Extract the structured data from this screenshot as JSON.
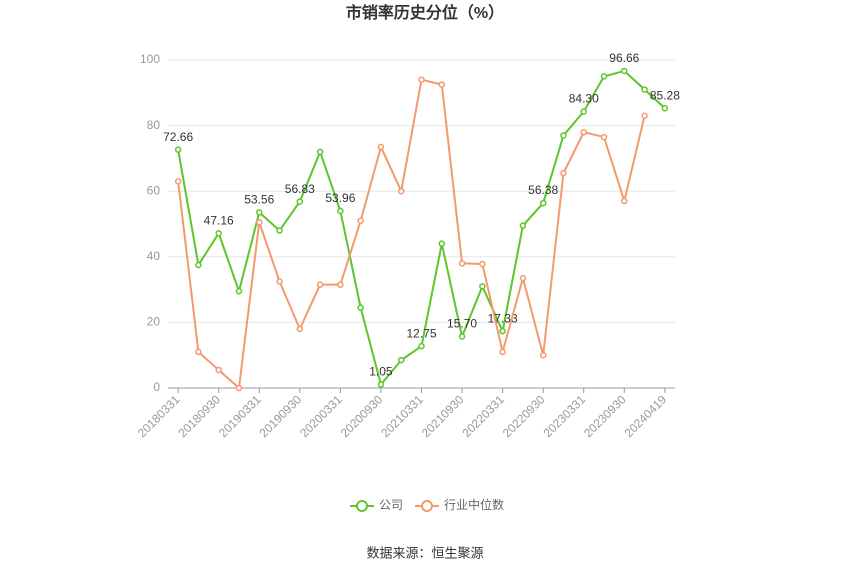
{
  "chart_data": {
    "type": "line",
    "title": "市销率历史分位（%）",
    "source": "数据来源：恒生聚源",
    "categories": [
      "20180331",
      null,
      "20180930",
      null,
      "20190331",
      null,
      "20190930",
      null,
      "20200331",
      null,
      "20200930",
      null,
      "20210331",
      null,
      "20210930",
      null,
      "20220331",
      null,
      "20220930",
      null,
      "20230331",
      null,
      "20230930",
      null,
      "20240419"
    ],
    "series": [
      {
        "name": "公司",
        "color": "#5ec52b",
        "values": [
          72.66,
          37.5,
          47.16,
          29.5,
          53.56,
          48,
          56.83,
          72,
          53.96,
          24.5,
          1.05,
          8.5,
          12.75,
          44,
          15.7,
          31,
          17.33,
          49.5,
          56.38,
          77,
          84.3,
          95,
          96.66,
          91,
          85.28
        ],
        "value_labels": [
          "72.66",
          null,
          "47.16",
          null,
          "53.56",
          null,
          "56.83",
          null,
          "53.96",
          null,
          "1.05",
          null,
          "12.75",
          null,
          "15.70",
          null,
          "17.33",
          null,
          "56.38",
          null,
          "84.30",
          null,
          "96.66",
          null,
          "85.28"
        ]
      },
      {
        "name": "行业中位数",
        "color": "#f29a6e",
        "values": [
          63,
          11,
          5.5,
          0,
          50.5,
          32.5,
          18,
          31.5,
          31.5,
          51,
          73.5,
          60,
          94,
          92.5,
          38,
          37.8,
          11,
          33.5,
          10,
          65.5,
          78,
          76.5,
          57,
          83,
          null
        ]
      }
    ],
    "ylim": [
      0,
      100
    ],
    "yticks": [
      0,
      20,
      40,
      60,
      80,
      100
    ],
    "grid": true
  }
}
